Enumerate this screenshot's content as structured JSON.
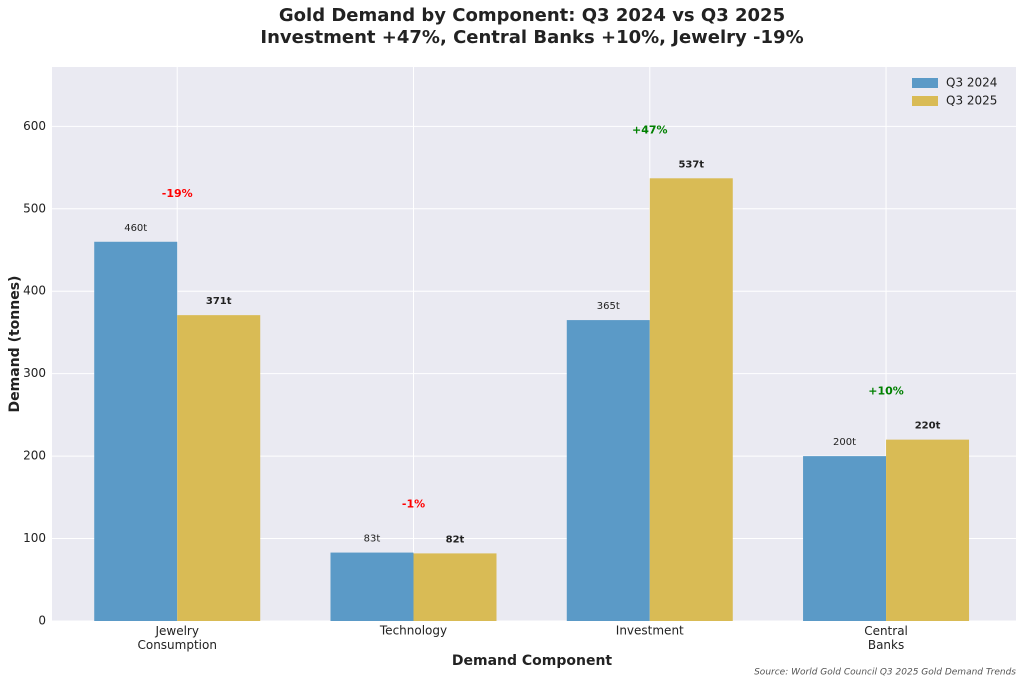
{
  "chart_data": {
    "type": "bar",
    "title": "Gold Demand by Component: Q3 2024 vs Q3 2025",
    "subtitle": "Investment +47%, Central Banks +10%, Jewelry -19%",
    "x_label": "Demand Component",
    "y_label": "Demand (tonnes)",
    "source": "Source: World Gold Council Q3 2025 Gold Demand Trends",
    "categories": [
      "Jewelry\nConsumption",
      "Technology",
      "Investment",
      "Central\nBanks"
    ],
    "series": [
      {
        "name": "Q3 2024",
        "color": "#5b9ac7",
        "values": [
          460,
          83,
          365,
          200
        ],
        "value_labels": [
          "460t",
          "83t",
          "365t",
          "200t"
        ]
      },
      {
        "name": "Q3 2025",
        "color": "#d9bb55",
        "values": [
          371,
          82,
          537,
          220
        ],
        "value_labels": [
          "371t",
          "82t",
          "537t",
          "220t"
        ]
      }
    ],
    "changes": {
      "values": [
        -19,
        -1,
        47,
        10
      ],
      "value_labels": [
        "-19%",
        "-1%",
        "+47%",
        "+10%"
      ],
      "colors": [
        "#ff0000",
        "#ff0000",
        "#008000",
        "#008000"
      ]
    },
    "ylim": [
      0,
      672
    ],
    "yticks": [
      0,
      100,
      200,
      300,
      400,
      500,
      600
    ],
    "grid": true,
    "legend": "upper right"
  }
}
